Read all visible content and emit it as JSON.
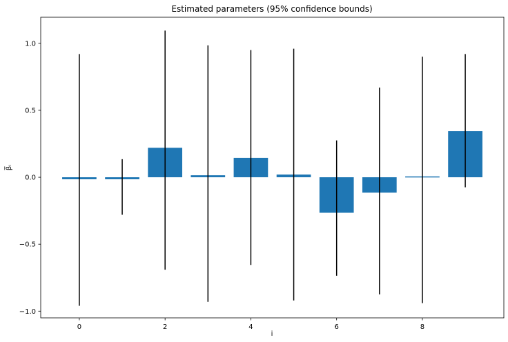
{
  "chart_data": {
    "type": "bar",
    "title": "Estimated parameters (95% confidence bounds)",
    "xlabel": "i",
    "ylabel": "β̅ᵢ",
    "x": [
      0,
      1,
      2,
      3,
      4,
      5,
      6,
      7,
      8,
      9
    ],
    "values": [
      -0.015,
      -0.015,
      0.22,
      0.015,
      0.145,
      0.02,
      -0.265,
      -0.115,
      0.005,
      0.345
    ],
    "error_low": [
      -0.96,
      -0.28,
      -0.69,
      -0.93,
      -0.655,
      -0.92,
      -0.735,
      -0.875,
      -0.94,
      -0.075
    ],
    "error_high": [
      0.92,
      0.135,
      1.095,
      0.985,
      0.95,
      0.96,
      0.275,
      0.67,
      0.9,
      0.92
    ],
    "xticks": [
      0,
      2,
      4,
      6,
      8
    ],
    "xtick_labels": [
      "0",
      "2",
      "4",
      "6",
      "8"
    ],
    "yticks": [
      -1.0,
      -0.5,
      0.0,
      0.5,
      1.0
    ],
    "ytick_labels": [
      "−1.0",
      "−0.5",
      "0.0",
      "0.5",
      "1.0"
    ],
    "xlim": [
      -0.9,
      9.9
    ],
    "ylim": [
      -1.05,
      1.195
    ],
    "grid": false,
    "bar_color": "#1f77b4",
    "errorbar_color": "#000000"
  }
}
